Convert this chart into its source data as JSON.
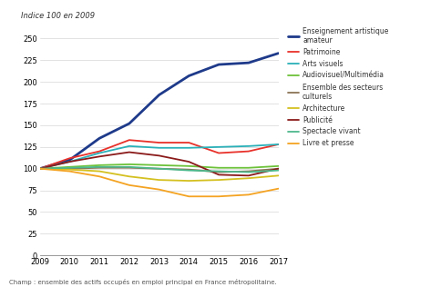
{
  "years": [
    2009,
    2010,
    2011,
    2012,
    2013,
    2014,
    2015,
    2016,
    2017
  ],
  "series": [
    {
      "label": "Enseignement artistique\namateur",
      "values": [
        100,
        110,
        135,
        152,
        185,
        207,
        220,
        222,
        233
      ],
      "color": "#1e3a8a",
      "lw": 2.0
    },
    {
      "label": "Patrimoine",
      "values": [
        100,
        112,
        120,
        133,
        130,
        130,
        118,
        120,
        128
      ],
      "color": "#e8312a",
      "lw": 1.3
    },
    {
      "label": "Arts visuels",
      "values": [
        100,
        108,
        118,
        126,
        124,
        124,
        125,
        126,
        128
      ],
      "color": "#2ab0b8",
      "lw": 1.3
    },
    {
      "label": "Audiovisuel/Multimédia",
      "values": [
        100,
        102,
        104,
        105,
        104,
        103,
        101,
        101,
        103
      ],
      "color": "#6dc23a",
      "lw": 1.3
    },
    {
      "label": "Ensemble des secteurs\nculturels",
      "values": [
        100,
        100,
        101,
        101,
        100,
        99,
        96,
        97,
        100
      ],
      "color": "#8b7355",
      "lw": 1.3
    },
    {
      "label": "Architecture",
      "values": [
        100,
        99,
        97,
        91,
        87,
        86,
        87,
        89,
        92
      ],
      "color": "#d4c020",
      "lw": 1.3
    },
    {
      "label": "Publicité",
      "values": [
        100,
        108,
        114,
        119,
        115,
        108,
        93,
        92,
        100
      ],
      "color": "#8b1a1a",
      "lw": 1.3
    },
    {
      "label": "Spectacle vivant",
      "values": [
        100,
        101,
        102,
        102,
        100,
        98,
        97,
        96,
        98
      ],
      "color": "#4db88c",
      "lw": 1.3
    },
    {
      "label": "Livre et presse",
      "values": [
        100,
        97,
        91,
        81,
        76,
        68,
        68,
        70,
        77
      ],
      "color": "#f4a322",
      "lw": 1.3
    }
  ],
  "ylabel": "Indice 100 en 2009",
  "yticks": [
    0,
    25,
    50,
    75,
    100,
    125,
    150,
    175,
    200,
    225,
    250
  ],
  "ylim": [
    0,
    258
  ],
  "xlim": [
    2009,
    2017
  ],
  "xticks": [
    2009,
    2010,
    2011,
    2012,
    2013,
    2014,
    2015,
    2016,
    2017
  ],
  "footnote": "Champ : ensemble des actifs occupés en emploi principal en France métropolitaine.",
  "background_color": "#ffffff",
  "top_bar_color": "#7ab8cc"
}
